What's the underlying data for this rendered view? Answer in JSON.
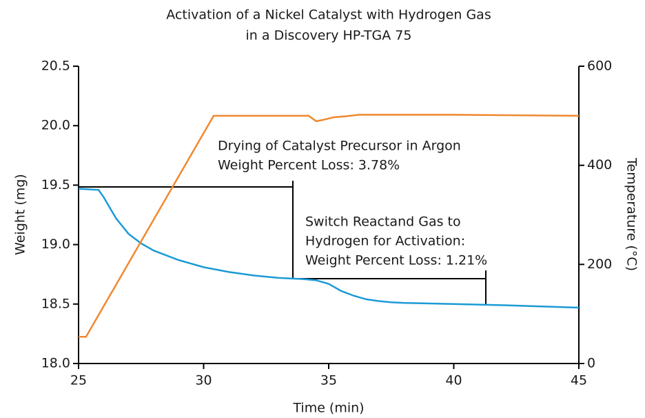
{
  "chart_data": {
    "type": "line",
    "title": [
      "Activation of a Nickel Catalyst with Hydrogen Gas",
      "in a Discovery HP-TGA 75"
    ],
    "xlabel": "Time (min)",
    "ylabel": "Weight (mg)",
    "y2label": "Temperature (°C)",
    "xlim": [
      25,
      45
    ],
    "xticks": [
      25,
      30,
      35,
      40,
      45
    ],
    "ylim": [
      18.0,
      20.5
    ],
    "yticks": [
      {
        "value": 18.0,
        "label": "18.0"
      },
      18.5,
      {
        "value": 19.0,
        "label": "19.0"
      },
      19.5,
      {
        "value": 20.0,
        "label": "20.0"
      },
      20.5
    ],
    "y2lim": [
      0,
      600
    ],
    "y2ticks": [
      0,
      200,
      400,
      600
    ],
    "series": [
      {
        "color": "#1a9ad6",
        "x": [
          25,
          25.8,
          26,
          26.5,
          27,
          27.5,
          28,
          29,
          30,
          31,
          32,
          33,
          34,
          34.5,
          35,
          35.5,
          36,
          36.5,
          37,
          37.5,
          38,
          40,
          42,
          45
        ],
        "values": [
          19.47,
          19.46,
          19.4,
          19.22,
          19.09,
          19.01,
          18.95,
          18.87,
          18.81,
          18.77,
          18.74,
          18.72,
          18.71,
          18.7,
          18.67,
          18.61,
          18.57,
          18.54,
          18.525,
          18.515,
          18.51,
          18.5,
          18.49,
          18.47
        ]
      },
      {
        "color": "#f0882e",
        "axis": "y2",
        "x": [
          25,
          25.3,
          30.4,
          34.2,
          34.5,
          34.8,
          35.2,
          35.7,
          36.2,
          40,
          45
        ],
        "values": [
          54,
          54,
          500,
          500,
          489,
          492,
          497,
          499,
          502,
          502,
          500
        ]
      }
    ],
    "annotations": [
      [
        "Drying of Catalyst Precursor in Argon",
        "Weight Percent Loss: 3.78%"
      ],
      [
        "Switch Reactand Gas to",
        "Hydrogen for Activation:",
        "Weight Percent Loss: 1.21%"
      ]
    ]
  }
}
